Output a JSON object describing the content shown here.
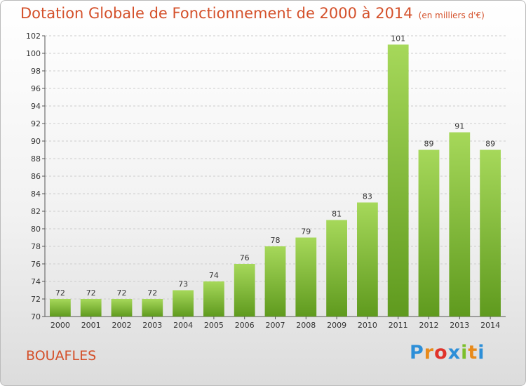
{
  "header": {
    "title": "Dotation Globale de Fonctionnement de 2000 à 2014",
    "subtitle": "(en milliers d'€)"
  },
  "commune": "BOUAFLES",
  "logo": {
    "letters": [
      "P",
      "r",
      "o",
      "x",
      "i",
      "t",
      "i"
    ],
    "colors": [
      "#2d8fd8",
      "#e88a1a",
      "#e0332a",
      "#2d8fd8",
      "#7bbf2a",
      "#e88a1a",
      "#2d8fd8"
    ]
  },
  "colors": {
    "bar_top": "#a6d85a",
    "bar_bottom": "#5f9a1e",
    "accent": "#d4502a",
    "grid": "#cccccc"
  },
  "chart_data": {
    "type": "bar",
    "categories": [
      "2000",
      "2001",
      "2002",
      "2003",
      "2004",
      "2005",
      "2006",
      "2007",
      "2008",
      "2009",
      "2010",
      "2011",
      "2012",
      "2013",
      "2014"
    ],
    "values": [
      72,
      72,
      72,
      72,
      73,
      74,
      76,
      78,
      79,
      81,
      83,
      101,
      89,
      91,
      89
    ],
    "ylim": [
      70,
      102
    ],
    "yticks": [
      70,
      72,
      74,
      76,
      78,
      80,
      82,
      84,
      86,
      88,
      90,
      92,
      94,
      96,
      98,
      100,
      102
    ],
    "grid": true,
    "data_labels": true
  }
}
